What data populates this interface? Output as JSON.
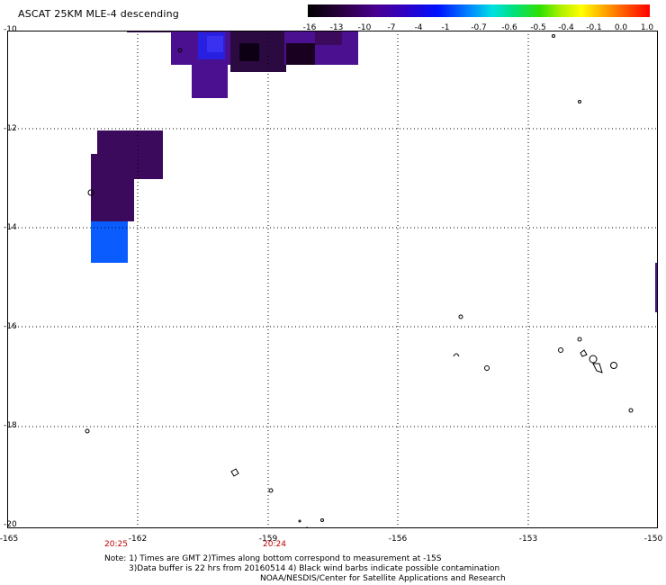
{
  "title": "ASCAT 25KM MLE-4 descending",
  "colorbar": {
    "ticks": [
      "-16",
      "-13",
      "-10",
      "-7",
      "-4",
      "-1",
      "-0.7",
      "-0.6",
      "-0.5",
      "-0.4",
      "-0.1",
      "0.0",
      "1.0"
    ]
  },
  "axes": {
    "y_labels": [
      "-10",
      "-12",
      "-14",
      "-16",
      "-18",
      "-20"
    ],
    "x_labels": [
      "-165",
      "-162",
      "-159",
      "-156",
      "-153",
      "-150"
    ],
    "times": [
      "20:25",
      "20:24"
    ]
  },
  "notes": {
    "line1": "Note: 1) Times are GMT 2)Times along bottom correspond to measurement at -15S",
    "line2": "3)Data buffer is 22 hrs from 20160514 4) Black wind barbs indicate possible contamination",
    "line3": "NOAA/NESDIS/Center for Satellite Applications and Research"
  },
  "colors": {
    "deep_purple": "#3c0a5c",
    "purple": "#4b1090",
    "violet": "#4a18b0",
    "blue": "#2820e0",
    "bright_blue": "#0a5cff",
    "black": "#000000"
  }
}
